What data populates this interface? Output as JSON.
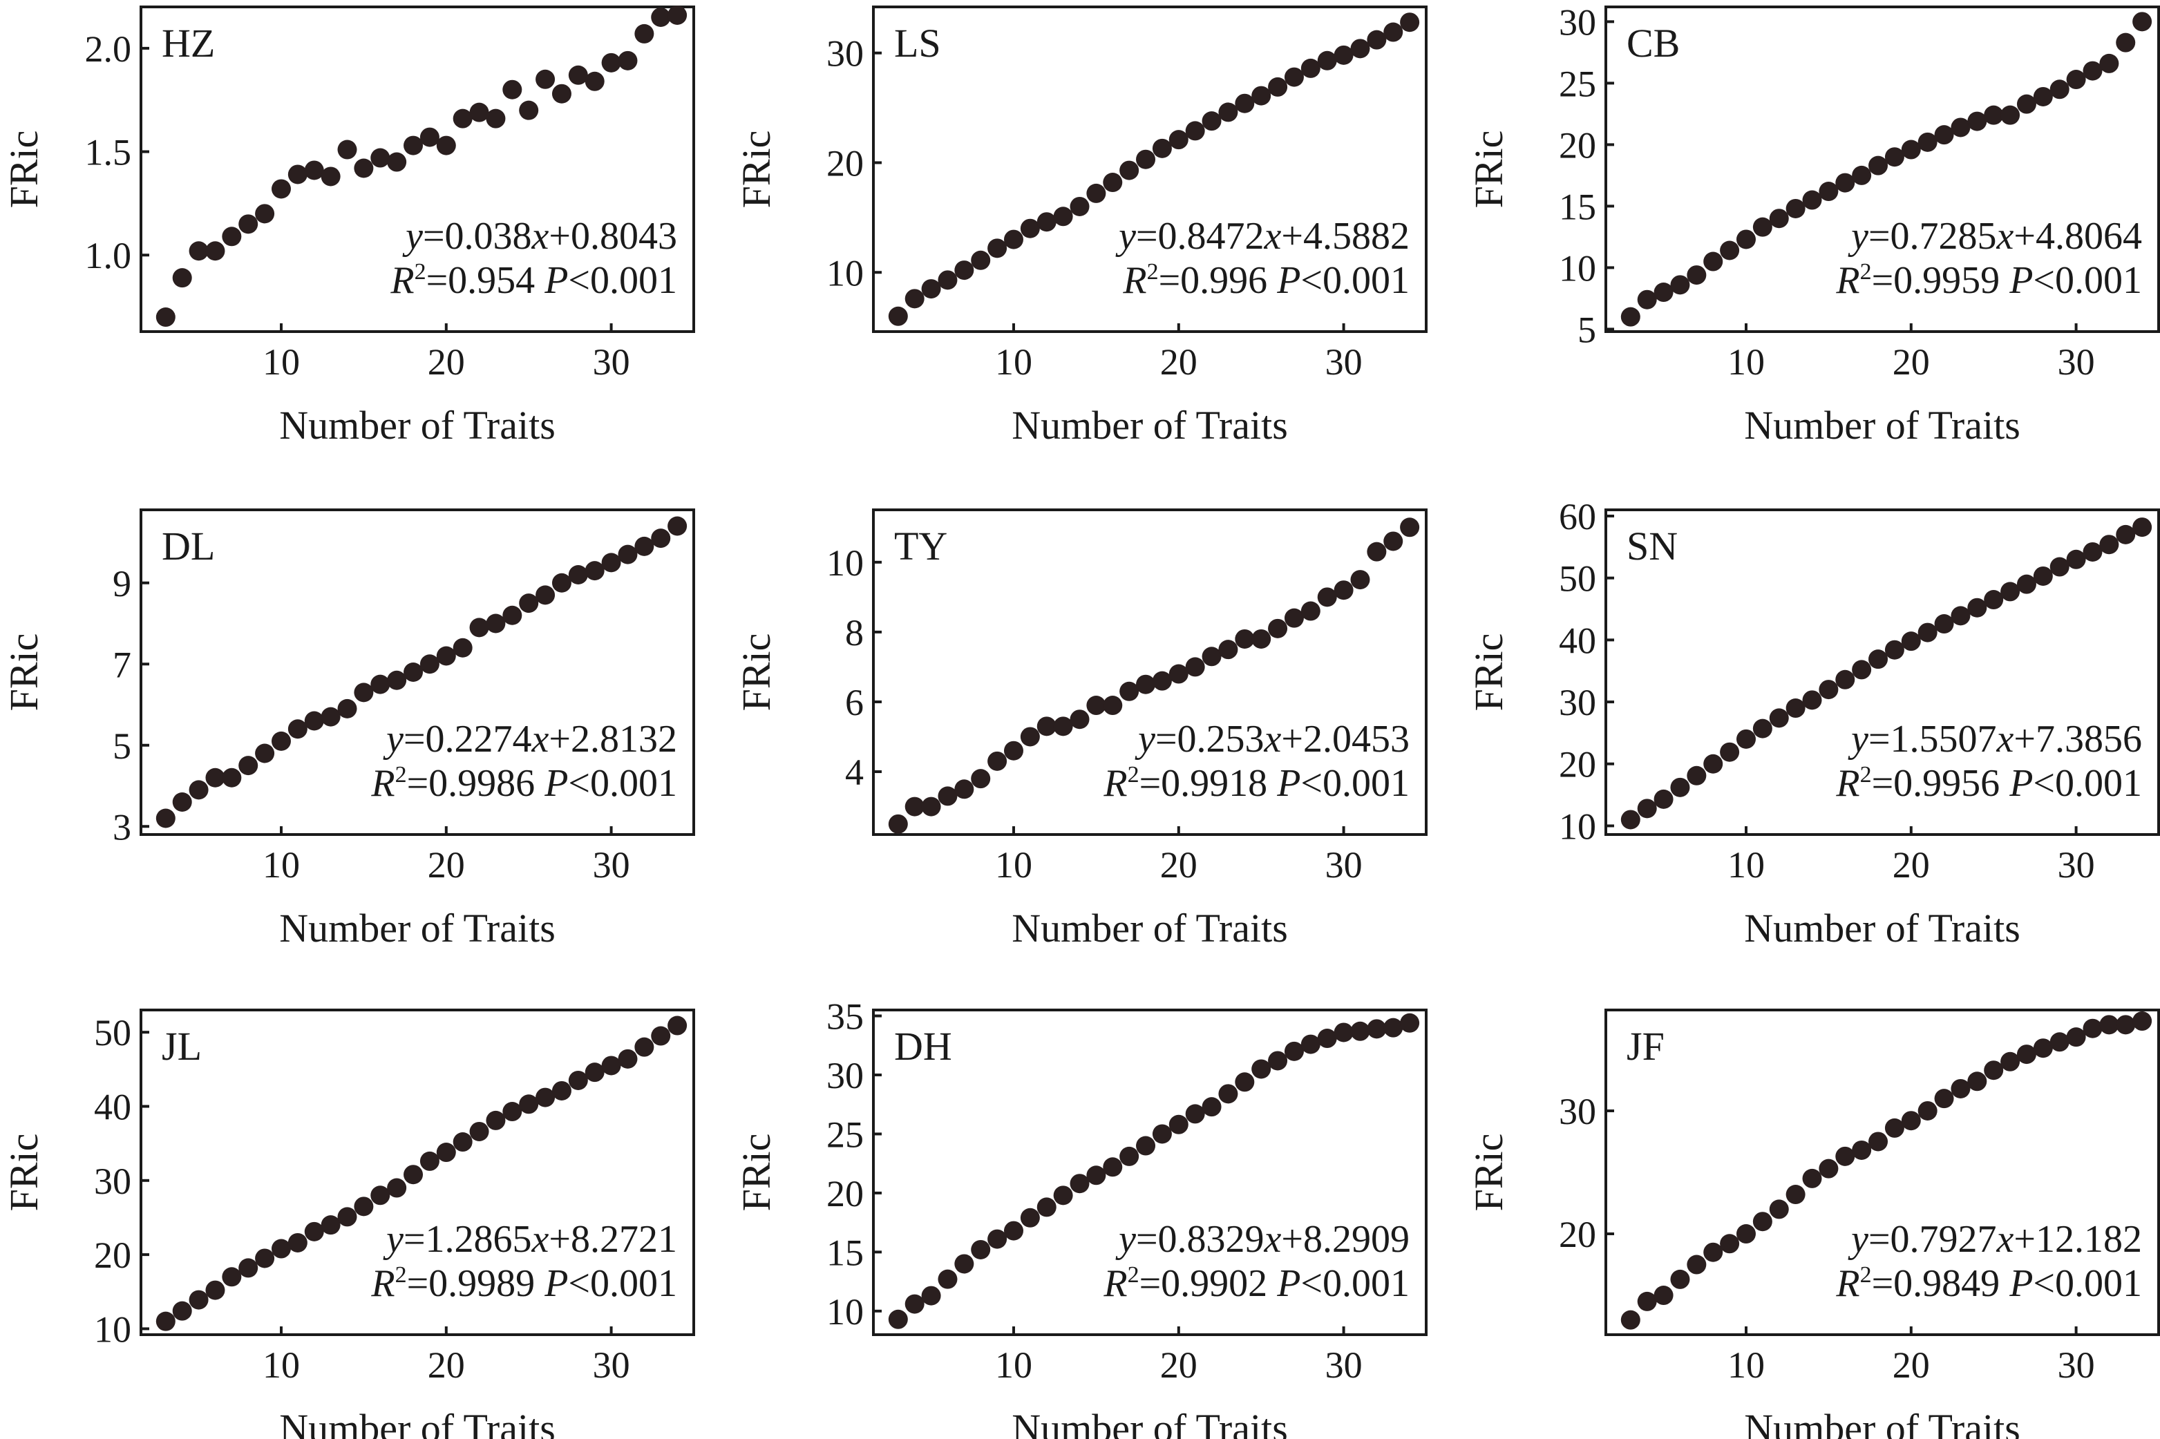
{
  "chart_data": [
    {
      "type": "scatter",
      "panel": "HZ",
      "xlabel": "Number of Traits",
      "ylabel": "FRic",
      "xlim": [
        1.5,
        35
      ],
      "ylim": [
        0.63,
        2.2
      ],
      "xticks": [
        10,
        20,
        30
      ],
      "yticks": [
        1.0,
        1.5,
        2.0
      ],
      "xtick_labels": [
        "10",
        "20",
        "30"
      ],
      "ytick_labels": [
        "1.0",
        "1.5",
        "2.0"
      ],
      "equation": {
        "y_var": "y",
        "eq": "=0.038",
        "x_var": "x",
        "rest": "+0.8043",
        "r": "R",
        "sup": "2",
        "r2": "=0.954 ",
        "p": "P",
        "pval": "<0.001"
      },
      "x": [
        3,
        4,
        5,
        6,
        7,
        8,
        9,
        10,
        11,
        12,
        13,
        14,
        15,
        16,
        17,
        18,
        19,
        20,
        21,
        22,
        23,
        24,
        25,
        26,
        27,
        28,
        29,
        30,
        31,
        32,
        33,
        34
      ],
      "y": [
        0.7,
        0.89,
        1.02,
        1.02,
        1.09,
        1.15,
        1.2,
        1.32,
        1.39,
        1.41,
        1.38,
        1.51,
        1.42,
        1.47,
        1.45,
        1.53,
        1.57,
        1.53,
        1.66,
        1.69,
        1.66,
        1.8,
        1.7,
        1.85,
        1.78,
        1.87,
        1.84,
        1.93,
        1.94,
        2.07,
        2.15,
        2.16
      ]
    },
    {
      "type": "scatter",
      "panel": "LS",
      "xlabel": "Number of Traits",
      "ylabel": "FRic",
      "xlim": [
        1.5,
        35
      ],
      "ylim": [
        4.6,
        34.2
      ],
      "xticks": [
        10,
        20,
        30
      ],
      "yticks": [
        10,
        20,
        30
      ],
      "xtick_labels": [
        "10",
        "20",
        "30"
      ],
      "ytick_labels": [
        "10",
        "20",
        "30"
      ],
      "equation": {
        "y_var": "y",
        "eq": "=0.8472",
        "x_var": "x",
        "rest": "+4.5882",
        "r": "R",
        "sup": "2",
        "r2": "=0.996 ",
        "p": "P",
        "pval": "<0.001"
      },
      "x": [
        3,
        4,
        5,
        6,
        7,
        8,
        9,
        10,
        11,
        12,
        13,
        14,
        15,
        16,
        17,
        18,
        19,
        20,
        21,
        22,
        23,
        24,
        25,
        26,
        27,
        28,
        29,
        30,
        31,
        32,
        33,
        34
      ],
      "y": [
        6.0,
        7.6,
        8.5,
        9.3,
        10.2,
        11.1,
        12.2,
        13.0,
        14.0,
        14.6,
        15.1,
        16.0,
        17.2,
        18.2,
        19.3,
        20.3,
        21.3,
        22.1,
        22.9,
        23.8,
        24.6,
        25.4,
        26.1,
        26.9,
        27.8,
        28.6,
        29.3,
        29.8,
        30.4,
        31.2,
        31.9,
        32.8
      ]
    },
    {
      "type": "scatter",
      "panel": "CB",
      "xlabel": "Number of Traits",
      "ylabel": "FRic",
      "xlim": [
        1.5,
        35
      ],
      "ylim": [
        4.8,
        31.2
      ],
      "xticks": [
        10,
        20,
        30
      ],
      "yticks": [
        5,
        10,
        15,
        20,
        25,
        30
      ],
      "xtick_labels": [
        "10",
        "20",
        "30"
      ],
      "ytick_labels": [
        "5",
        "10",
        "15",
        "20",
        "25",
        "30"
      ],
      "equation": {
        "y_var": "y",
        "eq": "=0.7285",
        "x_var": "x",
        "rest": "+4.8064",
        "r": "R",
        "sup": "2",
        "r2": "=0.9959 ",
        "p": "P",
        "pval": "<0.001"
      },
      "x": [
        3,
        4,
        5,
        6,
        7,
        8,
        9,
        10,
        11,
        12,
        13,
        14,
        15,
        16,
        17,
        18,
        19,
        20,
        21,
        22,
        23,
        24,
        25,
        26,
        27,
        28,
        29,
        30,
        31,
        32,
        33,
        34
      ],
      "y": [
        6.0,
        7.4,
        8.0,
        8.6,
        9.4,
        10.5,
        11.4,
        12.3,
        13.3,
        14.0,
        14.8,
        15.5,
        16.2,
        16.9,
        17.5,
        18.3,
        19.0,
        19.6,
        20.2,
        20.8,
        21.4,
        21.9,
        22.4,
        22.4,
        23.3,
        23.9,
        24.5,
        25.3,
        26.0,
        26.6,
        28.3,
        30.0
      ]
    },
    {
      "type": "scatter",
      "panel": "DL",
      "xlabel": "Number of Traits",
      "ylabel": "FRic",
      "xlim": [
        1.5,
        35
      ],
      "ylim": [
        2.8,
        10.8
      ],
      "xticks": [
        10,
        20,
        30
      ],
      "yticks": [
        3,
        5,
        7,
        9
      ],
      "xtick_labels": [
        "10",
        "20",
        "30"
      ],
      "ytick_labels": [
        "3",
        "5",
        "7",
        "9"
      ],
      "equation": {
        "y_var": "y",
        "eq": "=0.2274",
        "x_var": "x",
        "rest": "+2.8132",
        "r": "R",
        "sup": "2",
        "r2": "=0.9986 ",
        "p": "P",
        "pval": "<0.001"
      },
      "x": [
        3,
        4,
        5,
        6,
        7,
        8,
        9,
        10,
        11,
        12,
        13,
        14,
        15,
        16,
        17,
        18,
        19,
        20,
        21,
        22,
        23,
        24,
        25,
        26,
        27,
        28,
        29,
        30,
        31,
        32,
        33,
        34
      ],
      "y": [
        3.2,
        3.6,
        3.9,
        4.2,
        4.2,
        4.5,
        4.8,
        5.1,
        5.4,
        5.6,
        5.7,
        5.9,
        6.3,
        6.5,
        6.6,
        6.8,
        7.0,
        7.2,
        7.4,
        7.9,
        8.0,
        8.2,
        8.5,
        8.7,
        9.0,
        9.2,
        9.3,
        9.5,
        9.7,
        9.9,
        10.1,
        10.4
      ]
    },
    {
      "type": "scatter",
      "panel": "TY",
      "xlabel": "Number of Traits",
      "ylabel": "FRic",
      "xlim": [
        1.5,
        35
      ],
      "ylim": [
        2.2,
        11.5
      ],
      "xticks": [
        10,
        20,
        30
      ],
      "yticks": [
        4,
        6,
        8,
        10
      ],
      "xtick_labels": [
        "10",
        "20",
        "30"
      ],
      "ytick_labels": [
        "4",
        "6",
        "8",
        "10"
      ],
      "equation": {
        "y_var": "y",
        "eq": "=0.253",
        "x_var": "x",
        "rest": "+2.0453",
        "r": "R",
        "sup": "2",
        "r2": "=0.9918 ",
        "p": "P",
        "pval": "<0.001"
      },
      "x": [
        3,
        4,
        5,
        6,
        7,
        8,
        9,
        10,
        11,
        12,
        13,
        14,
        15,
        16,
        17,
        18,
        19,
        20,
        21,
        22,
        23,
        24,
        25,
        26,
        27,
        28,
        29,
        30,
        31,
        32,
        33,
        34
      ],
      "y": [
        2.5,
        3.0,
        3.0,
        3.3,
        3.5,
        3.8,
        4.3,
        4.6,
        5.0,
        5.3,
        5.3,
        5.5,
        5.9,
        5.9,
        6.3,
        6.5,
        6.6,
        6.8,
        7.0,
        7.3,
        7.5,
        7.8,
        7.8,
        8.1,
        8.4,
        8.6,
        9.0,
        9.2,
        9.5,
        10.3,
        10.6,
        11.0
      ]
    },
    {
      "type": "scatter",
      "panel": "SN",
      "xlabel": "Number of Traits",
      "ylabel": "FRic",
      "xlim": [
        1.5,
        35
      ],
      "ylim": [
        8.6,
        61
      ],
      "xticks": [
        10,
        20,
        30
      ],
      "yticks": [
        10,
        20,
        30,
        40,
        50,
        60
      ],
      "xtick_labels": [
        "10",
        "20",
        "30"
      ],
      "ytick_labels": [
        "10",
        "20",
        "30",
        "40",
        "50",
        "60"
      ],
      "equation": {
        "y_var": "y",
        "eq": "=1.5507",
        "x_var": "x",
        "rest": "+7.3856",
        "r": "R",
        "sup": "2",
        "r2": "=0.9956 ",
        "p": "P",
        "pval": "<0.001"
      },
      "x": [
        3,
        4,
        5,
        6,
        7,
        8,
        9,
        10,
        11,
        12,
        13,
        14,
        15,
        16,
        17,
        18,
        19,
        20,
        21,
        22,
        23,
        24,
        25,
        26,
        27,
        28,
        29,
        30,
        31,
        32,
        33,
        34
      ],
      "y": [
        11.0,
        12.8,
        14.3,
        16.2,
        18.1,
        20.0,
        21.9,
        24.0,
        25.7,
        27.4,
        29.0,
        30.3,
        32.0,
        33.6,
        35.2,
        36.9,
        38.4,
        39.8,
        41.2,
        42.6,
        43.9,
        45.2,
        46.5,
        47.8,
        49.0,
        50.3,
        51.8,
        53.0,
        54.2,
        55.4,
        57.0,
        58.2
      ]
    },
    {
      "type": "scatter",
      "panel": "JL",
      "xlabel": "Number of Traits",
      "ylabel": "FRic",
      "xlim": [
        1.5,
        35
      ],
      "ylim": [
        9.2,
        53
      ],
      "xticks": [
        10,
        20,
        30
      ],
      "yticks": [
        10,
        20,
        30,
        40,
        50
      ],
      "xtick_labels": [
        "10",
        "20",
        "30"
      ],
      "ytick_labels": [
        "10",
        "20",
        "30",
        "40",
        "50"
      ],
      "equation": {
        "y_var": "y",
        "eq": "=1.2865",
        "x_var": "x",
        "rest": "+8.2721",
        "r": "R",
        "sup": "2",
        "r2": "=0.9989 ",
        "p": "P",
        "pval": "<0.001"
      },
      "x": [
        3,
        4,
        5,
        6,
        7,
        8,
        9,
        10,
        11,
        12,
        13,
        14,
        15,
        16,
        17,
        18,
        19,
        20,
        21,
        22,
        23,
        24,
        25,
        26,
        27,
        28,
        29,
        30,
        31,
        32,
        33,
        34
      ],
      "y": [
        11.0,
        12.4,
        13.9,
        15.2,
        17.0,
        18.2,
        19.5,
        20.8,
        21.6,
        23.1,
        24.0,
        25.1,
        26.5,
        28.0,
        29.0,
        30.8,
        32.6,
        33.8,
        35.2,
        36.6,
        38.1,
        39.3,
        40.3,
        41.2,
        42.1,
        43.5,
        44.6,
        45.5,
        46.4,
        48.0,
        49.5,
        50.9
      ]
    },
    {
      "type": "scatter",
      "panel": "DH",
      "xlabel": "Number of Traits",
      "ylabel": "FRic",
      "xlim": [
        1.5,
        35
      ],
      "ylim": [
        8.0,
        35.5
      ],
      "xticks": [
        10,
        20,
        30
      ],
      "yticks": [
        10,
        15,
        20,
        25,
        30,
        35
      ],
      "xtick_labels": [
        "10",
        "20",
        "30"
      ],
      "ytick_labels": [
        "10",
        "15",
        "20",
        "25",
        "30",
        "35"
      ],
      "equation": {
        "y_var": "y",
        "eq": "=0.8329",
        "x_var": "x",
        "rest": "+8.2909",
        "r": "R",
        "sup": "2",
        "r2": "=0.9902 ",
        "p": "P",
        "pval": "<0.001"
      },
      "x": [
        3,
        4,
        5,
        6,
        7,
        8,
        9,
        10,
        11,
        12,
        13,
        14,
        15,
        16,
        17,
        18,
        19,
        20,
        21,
        22,
        23,
        24,
        25,
        26,
        27,
        28,
        29,
        30,
        31,
        32,
        33,
        34
      ],
      "y": [
        9.3,
        10.6,
        11.3,
        12.7,
        14.0,
        15.2,
        16.1,
        16.8,
        17.9,
        18.8,
        19.8,
        20.8,
        21.5,
        22.2,
        23.1,
        24.0,
        25.0,
        25.8,
        26.7,
        27.3,
        28.4,
        29.4,
        30.5,
        31.2,
        32.0,
        32.6,
        33.1,
        33.6,
        33.7,
        33.9,
        34.0,
        34.4
      ]
    },
    {
      "type": "scatter",
      "panel": "JF",
      "xlabel": "Number of Traits",
      "ylabel": "FRic",
      "xlim": [
        1.5,
        35
      ],
      "ylim": [
        11.8,
        38.2
      ],
      "xticks": [
        10,
        20,
        30
      ],
      "yticks": [
        20,
        30
      ],
      "xtick_labels": [
        "10",
        "20",
        "30"
      ],
      "ytick_labels": [
        "20",
        "30"
      ],
      "equation": {
        "y_var": "y",
        "eq": "=0.7927",
        "x_var": "x",
        "rest": "+12.182",
        "r": "R",
        "sup": "2",
        "r2": "=0.9849 ",
        "p": "P",
        "pval": "<0.001"
      },
      "x": [
        3,
        4,
        5,
        6,
        7,
        8,
        9,
        10,
        11,
        12,
        13,
        14,
        15,
        16,
        17,
        18,
        19,
        20,
        21,
        22,
        23,
        24,
        25,
        26,
        27,
        28,
        29,
        30,
        31,
        32,
        33,
        34
      ],
      "y": [
        13.0,
        14.5,
        15.0,
        16.3,
        17.5,
        18.5,
        19.2,
        20.0,
        21.0,
        22.0,
        23.2,
        24.5,
        25.3,
        26.3,
        26.8,
        27.5,
        28.6,
        29.2,
        30.0,
        31.0,
        31.8,
        32.4,
        33.3,
        34.0,
        34.6,
        35.1,
        35.6,
        36.0,
        36.7,
        37.0,
        37.0,
        37.3
      ]
    }
  ]
}
